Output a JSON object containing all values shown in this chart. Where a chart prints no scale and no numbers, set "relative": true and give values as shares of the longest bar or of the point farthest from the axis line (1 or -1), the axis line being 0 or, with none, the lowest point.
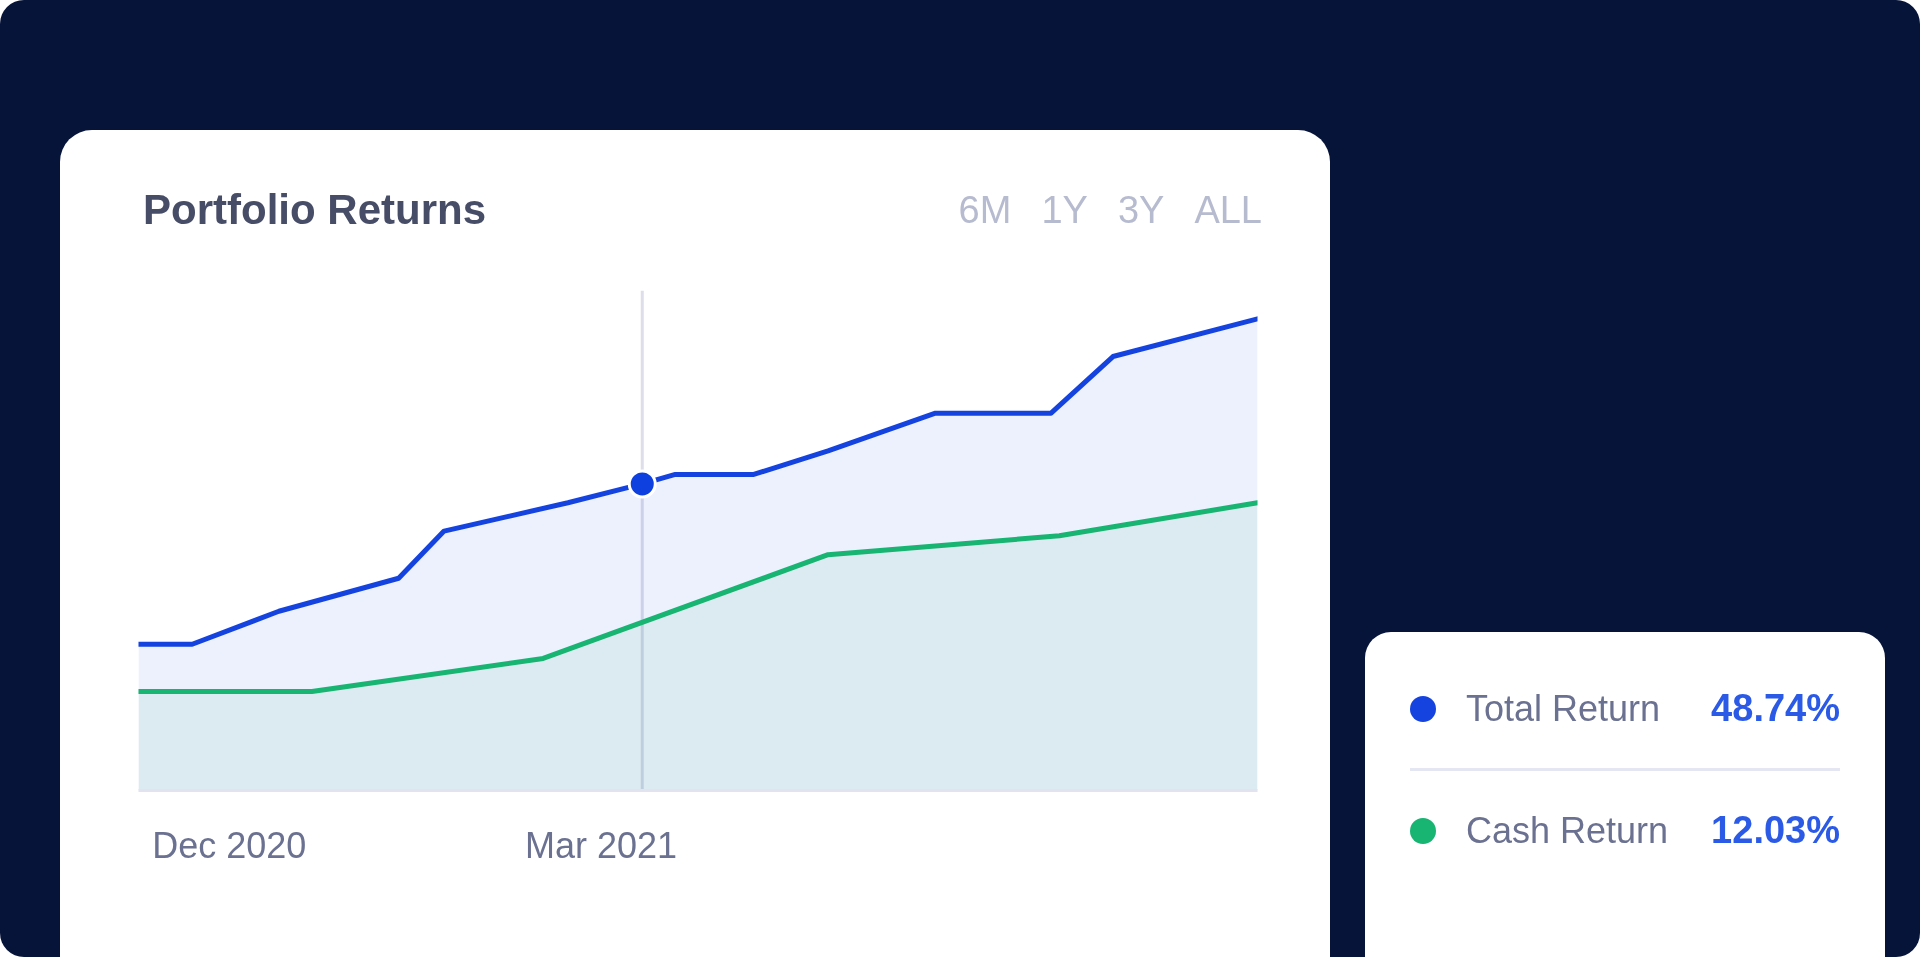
{
  "chart_data": {
    "type": "area",
    "title": "Portfolio Returns",
    "relative": true,
    "xlim": [
      "2020-11-09",
      "2021-08-07"
    ],
    "xticks": [
      {
        "value": "2020-12-01",
        "label": "Dec 2020"
      },
      {
        "value": "2021-03-01",
        "label": "Mar 2021"
      }
    ],
    "series": [
      {
        "name": "Total Return",
        "color": "#1443e0",
        "x": [
          "2020-11-09",
          "2020-11-22",
          "2020-12-13",
          "2021-01-11",
          "2021-01-22",
          "2021-02-21",
          "2021-03-11",
          "2021-03-19",
          "2021-04-07",
          "2021-04-25",
          "2021-05-21",
          "2021-06-18",
          "2021-07-03",
          "2021-08-07"
        ],
        "values": [
          0.31,
          0.31,
          0.38,
          0.45,
          0.55,
          0.61,
          0.65,
          0.67,
          0.67,
          0.72,
          0.8,
          0.8,
          0.92,
          1
        ]
      },
      {
        "name": "Cash Return",
        "color": "#18b472",
        "x": [
          "2020-11-09",
          "2020-12-21",
          "2021-02-15",
          "2021-04-25",
          "2021-06-20",
          "2021-08-07"
        ],
        "values": [
          0.21,
          0.21,
          0.28,
          0.5,
          0.54,
          0.61
        ]
      },
      {
        "type": "scatter",
        "color": "#0e40df",
        "marker": "circle",
        "x": [
          "2021-03-11"
        ],
        "values": [
          0.65
        ]
      }
    ],
    "ref_lines": [
      {
        "axis": "x",
        "value": "2021-03-11",
        "color": "#dcdeea"
      }
    ],
    "annotations": [
      "6M",
      "1Y",
      "3Y",
      "ALL",
      "48.74%",
      "12.03%"
    ],
    "legend": "bottom right"
  }
}
